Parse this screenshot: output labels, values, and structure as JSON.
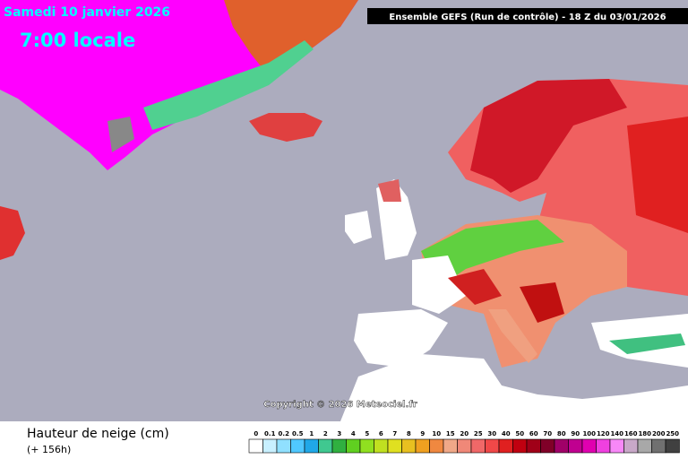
{
  "header": {
    "date": "Samedi 10 janvier 2026",
    "time": "7:00 locale",
    "run": "Ensemble GEFS  (Run de contrôle)  -  18 Z du 03/01/2026"
  },
  "map": {
    "copyright": "Copyright © 2026 Meteociel.fr"
  },
  "legend": {
    "title": "Hauteur de neige (cm)",
    "subtitle": "(+ 156h)",
    "items": [
      {
        "label": "0",
        "color": "#ffffff"
      },
      {
        "label": "0.1",
        "color": "#c8f0ff"
      },
      {
        "label": "0.2",
        "color": "#90e0ff"
      },
      {
        "label": "0.5",
        "color": "#50c8ff"
      },
      {
        "label": "1",
        "color": "#20a8e8"
      },
      {
        "label": "2",
        "color": "#40c890"
      },
      {
        "label": "3",
        "color": "#30b040"
      },
      {
        "label": "4",
        "color": "#60d020"
      },
      {
        "label": "5",
        "color": "#90e020"
      },
      {
        "label": "6",
        "color": "#c0e020"
      },
      {
        "label": "7",
        "color": "#e0e020"
      },
      {
        "label": "8",
        "color": "#e8c020"
      },
      {
        "label": "9",
        "color": "#f0a020"
      },
      {
        "label": "10",
        "color": "#f08840"
      },
      {
        "label": "15",
        "color": "#f0a888"
      },
      {
        "label": "20",
        "color": "#f08878"
      },
      {
        "label": "25",
        "color": "#f06868"
      },
      {
        "label": "30",
        "color": "#f04848"
      },
      {
        "label": "40",
        "color": "#e02020"
      },
      {
        "label": "50",
        "color": "#c00010"
      },
      {
        "label": "60",
        "color": "#a00018"
      },
      {
        "label": "70",
        "color": "#800028"
      },
      {
        "label": "80",
        "color": "#a00068"
      },
      {
        "label": "90",
        "color": "#c00090"
      },
      {
        "label": "100",
        "color": "#e000b0"
      },
      {
        "label": "120",
        "color": "#f040e0"
      },
      {
        "label": "140",
        "color": "#f888f8"
      },
      {
        "label": "160",
        "color": "#c8a8c8"
      },
      {
        "label": "180",
        "color": "#a8a8a8"
      },
      {
        "label": "200",
        "color": "#707070"
      },
      {
        "label": "250",
        "color": "#404040"
      }
    ]
  }
}
